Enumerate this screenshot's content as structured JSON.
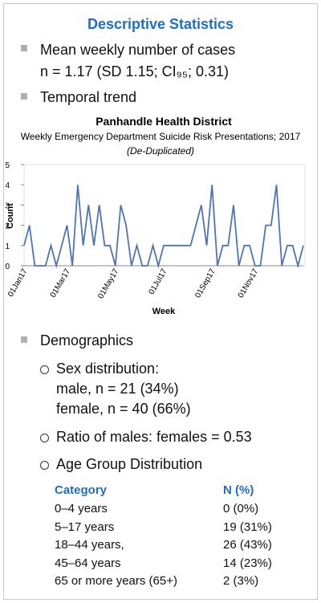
{
  "header": {
    "title": "Descriptive Statistics"
  },
  "bullets": [
    {
      "text": "Mean weekly number of cases",
      "detail": "n = 1.17 (SD 1.15; CI₉₅; 0.31)"
    },
    {
      "text": "Temporal trend"
    }
  ],
  "chart_data": {
    "type": "line",
    "title": "Panhandle Health District",
    "subtitle": "Weekly Emergency Department Suicide Risk Presentations; 2017",
    "note": "(De-Duplicated)",
    "x_label": "Week",
    "y_label": "Count",
    "categories": [
      "01Jan17",
      null,
      null,
      null,
      null,
      null,
      null,
      null,
      "01Mar17",
      null,
      null,
      null,
      null,
      null,
      null,
      null,
      null,
      "01May17",
      null,
      null,
      null,
      null,
      null,
      null,
      null,
      null,
      "01Jul17",
      null,
      null,
      null,
      null,
      null,
      null,
      null,
      null,
      "01Sep17",
      null,
      null,
      null,
      null,
      null,
      null,
      null,
      "01Nov17",
      null,
      null,
      null,
      null,
      null,
      null,
      null,
      null,
      null
    ],
    "series": [
      {
        "name": "Count",
        "color": "#4f74b3",
        "values": [
          1,
          2,
          0,
          0,
          0,
          1,
          0,
          1,
          2,
          0,
          4,
          1,
          3,
          1,
          3,
          1,
          1,
          0,
          3,
          2,
          0,
          1,
          0,
          0,
          1,
          0,
          1,
          1,
          1,
          1,
          1,
          1,
          2,
          3,
          1,
          4,
          0,
          1,
          1,
          3,
          0,
          1,
          1,
          0,
          0,
          2,
          2,
          4,
          0,
          1,
          1,
          0,
          1
        ]
      }
    ],
    "ylim": [
      0,
      5
    ],
    "yticks": [
      0,
      1,
      2,
      3,
      4,
      5
    ],
    "grid": false
  },
  "demographics": {
    "title": "Demographics",
    "items": [
      {
        "text": "Sex distribution:",
        "lines": [
          "male, n = 21 (34%)",
          "female, n = 40 (66%)"
        ]
      },
      {
        "text": "Ratio of males: females = 0.53"
      },
      {
        "text": "Age Group Distribution"
      }
    ]
  },
  "table": {
    "header": [
      "Category",
      "N (%)"
    ],
    "rows": [
      [
        "0–4 years",
        "0 (0%)"
      ],
      [
        "5–17 years",
        "19 (31%)"
      ],
      [
        "18–44 years,",
        "26 (43%)"
      ],
      [
        "45–64 years",
        "14 (23%)"
      ],
      [
        "65 or more years (65+)",
        "2 (3%)"
      ]
    ]
  }
}
